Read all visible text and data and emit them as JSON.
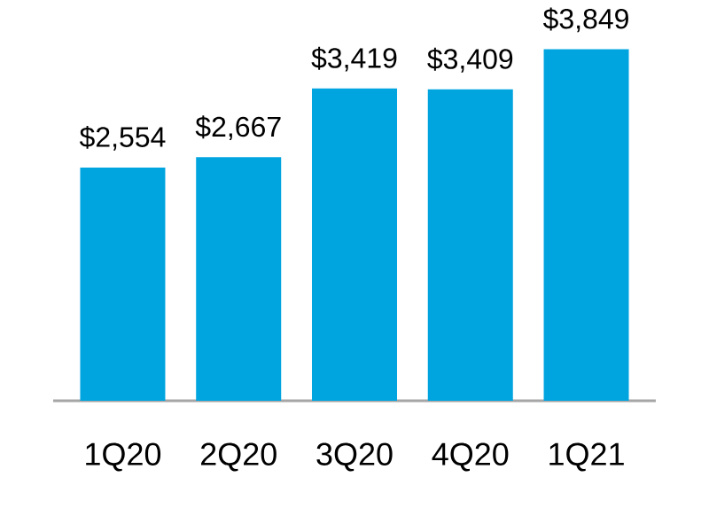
{
  "chart_data": {
    "type": "bar",
    "categories": [
      "1Q20",
      "2Q20",
      "3Q20",
      "4Q20",
      "1Q21"
    ],
    "values": [
      2554,
      2667,
      3419,
      3409,
      3849
    ],
    "value_labels": [
      "$2,554",
      "$2,667",
      "$3,419",
      "$3,409",
      "$3,849"
    ],
    "color": "#00a5e0",
    "tick_labels": "x"
  }
}
